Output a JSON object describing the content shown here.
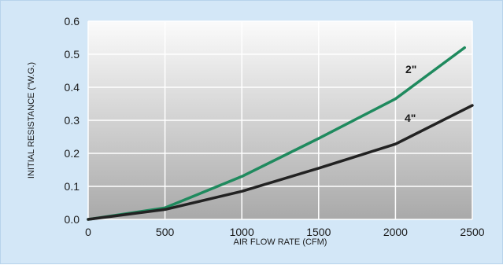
{
  "chart_data": {
    "type": "line",
    "title": "",
    "xlabel": "AIR FLOW RATE (CFM)",
    "ylabel": "INITIAL RESISTANCE (\"W.G.)",
    "xlim": [
      0,
      2500
    ],
    "ylim": [
      0,
      0.6
    ],
    "x_ticks": [
      "0",
      "500",
      "1000",
      "1500",
      "2000",
      "2500"
    ],
    "y_ticks": [
      "0.0",
      "0.1",
      "0.2",
      "0.3",
      "0.4",
      "0.5",
      "0.6"
    ],
    "grid": true,
    "legend": "inline labels on lines",
    "series": [
      {
        "name": "2\"",
        "color": "#1f8a5e",
        "x": [
          0,
          500,
          1000,
          1500,
          2000,
          2450
        ],
        "y": [
          0,
          0.035,
          0.13,
          0.245,
          0.365,
          0.52
        ]
      },
      {
        "name": "4\"",
        "color": "#222222",
        "x": [
          0,
          500,
          1000,
          1500,
          2000,
          2500
        ],
        "y": [
          0,
          0.03,
          0.085,
          0.155,
          0.228,
          0.345
        ]
      }
    ]
  },
  "colors": {
    "page_background": "#d3e7f7",
    "plot_gradient_top": "#fbfbfb",
    "plot_gradient_bottom": "#a9a9a9",
    "gridline": "#ffffff"
  }
}
